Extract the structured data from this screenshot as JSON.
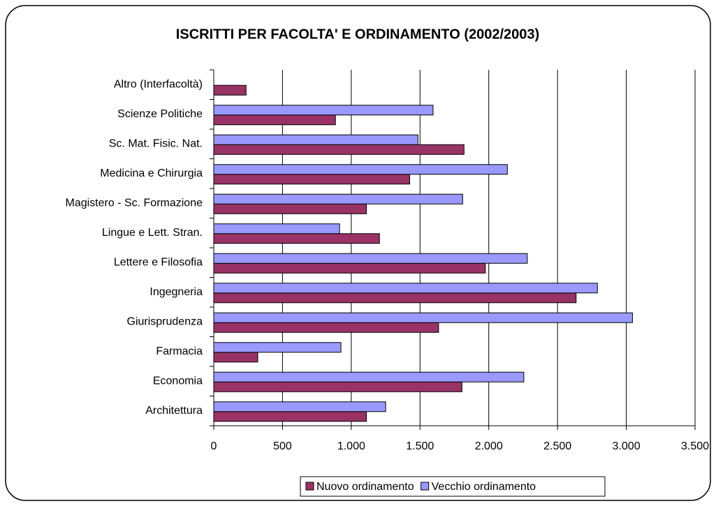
{
  "chart_data": {
    "type": "hbar",
    "title": "ISCRITTI PER FACOLTA' E ORDINAMENTO (2002/2003)",
    "categories": [
      "Architettura",
      "Economia",
      "Farmacia",
      "Giurisprudenza",
      "Ingegneria",
      "Lettere e Filosofia",
      "Lingue e Lett. Stran.",
      "Magistero - Sc. Formazione",
      "Medicina e Chirurgia",
      "Sc. Mat. Fisic. Nat.",
      "Scienze Politiche",
      "Altro (Interfacoltà)"
    ],
    "series": [
      {
        "name": "Nuovo ordinamento",
        "color": "#993366",
        "values": [
          1110,
          1805,
          320,
          1635,
          2635,
          1975,
          1205,
          1110,
          1425,
          1820,
          885,
          235
        ]
      },
      {
        "name": "Vecchio ordinamento",
        "color": "#9999ff",
        "values": [
          1250,
          2255,
          925,
          3045,
          2790,
          2280,
          915,
          1810,
          2135,
          1485,
          1595,
          null
        ]
      }
    ],
    "xlim": [
      0,
      3500
    ],
    "xticks": [
      0,
      500,
      {
        "value": 1000,
        "label": "1.000"
      },
      {
        "value": 1500,
        "label": "1.500"
      },
      {
        "value": 2000,
        "label": "2.000"
      },
      {
        "value": 2500,
        "label": "2.500"
      },
      {
        "value": 3000,
        "label": "3.000"
      },
      {
        "value": 3500,
        "label": "3.500"
      }
    ],
    "grid": true,
    "legend": "bottom"
  }
}
